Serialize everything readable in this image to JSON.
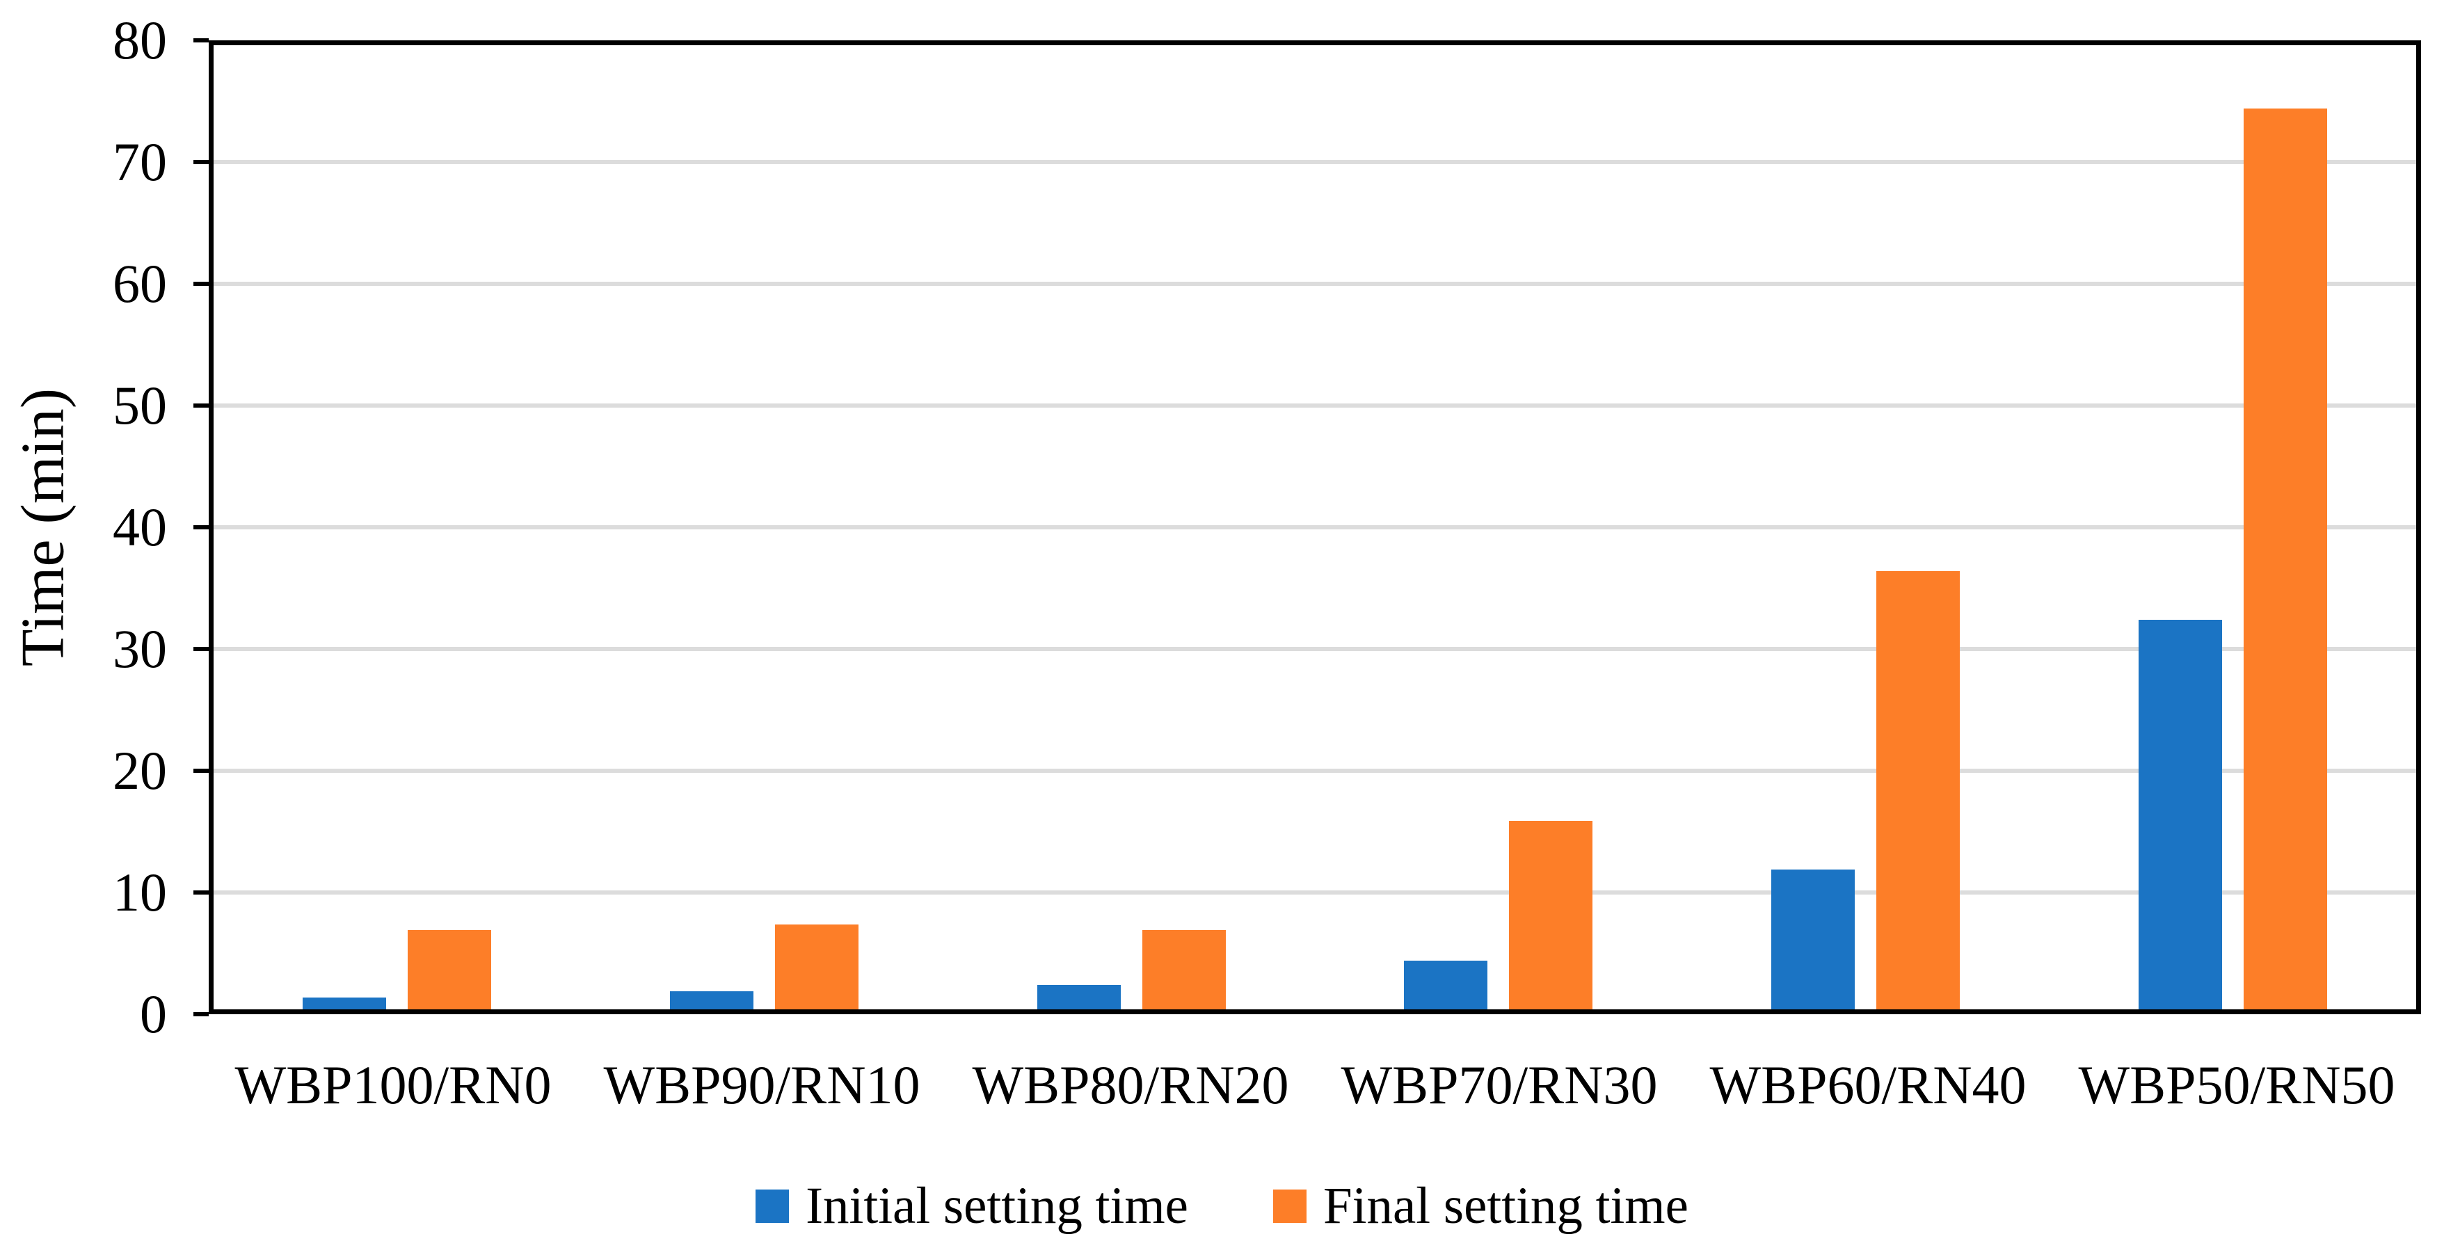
{
  "chart_data": {
    "type": "bar",
    "title": "",
    "categories": [
      "WBP100/RN0",
      "WBP90/RN10",
      "WBP80/RN20",
      "WBP70/RN30",
      "WBP60/RN40",
      "WBP50/RN50"
    ],
    "series": [
      {
        "name": "Initial setting time",
        "color": "#1B74C4",
        "values": [
          1,
          1.5,
          2,
          4,
          11.5,
          32
        ]
      },
      {
        "name": "Final setting time",
        "color": "#FD7E28",
        "values": [
          6.5,
          7,
          6.5,
          15.5,
          36,
          74
        ]
      }
    ],
    "xlabel": "",
    "ylabel": "Time (min)",
    "ylim": [
      0,
      80
    ],
    "ytick_step": 10,
    "yticks": [
      0,
      10,
      20,
      30,
      40,
      50,
      60,
      70,
      80
    ],
    "grid": true,
    "gridline_color": "#DCDCDC",
    "axis_color": "#000000",
    "legend_position": "bottom"
  }
}
